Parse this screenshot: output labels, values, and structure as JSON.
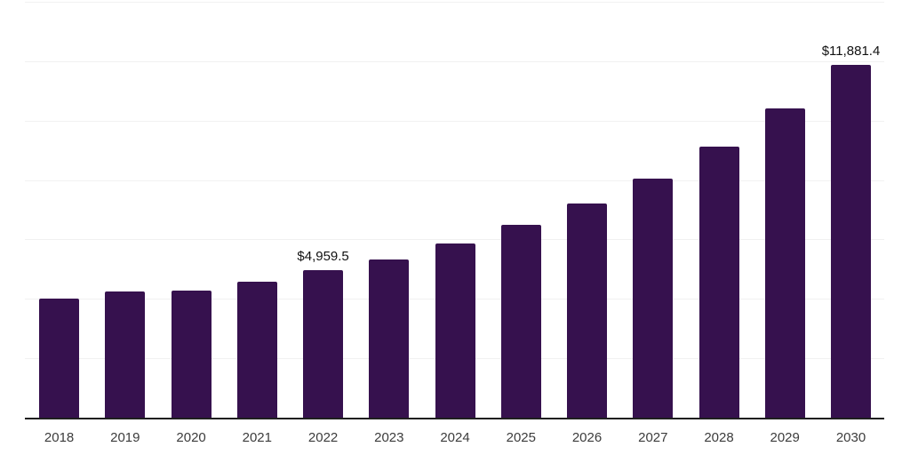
{
  "chart_data": {
    "type": "bar",
    "title": "",
    "xlabel": "",
    "ylabel": "",
    "categories": [
      "2018",
      "2019",
      "2020",
      "2021",
      "2022",
      "2023",
      "2024",
      "2025",
      "2026",
      "2027",
      "2028",
      "2029",
      "2030"
    ],
    "values": [
      4000,
      4250,
      4280,
      4580,
      4959.5,
      5340,
      5860,
      6480,
      7220,
      8060,
      9120,
      10400,
      11881.4
    ],
    "point_labels": [
      "",
      "",
      "",
      "",
      "$4,959.5",
      "",
      "",
      "",
      "",
      "",
      "",
      "",
      "$11,881.4"
    ],
    "ylim": [
      0,
      14000
    ],
    "gridline_step": 2000,
    "grid": "horizontal",
    "legend": "none",
    "y_axis_tick_labels_visible": false,
    "bar_color": "#36114E",
    "gridline_color": "#f1f1f1",
    "axis_line_color": "#1f1f1f",
    "tick_label_color": "#3c3c3c",
    "value_label_color": "#111111"
  }
}
